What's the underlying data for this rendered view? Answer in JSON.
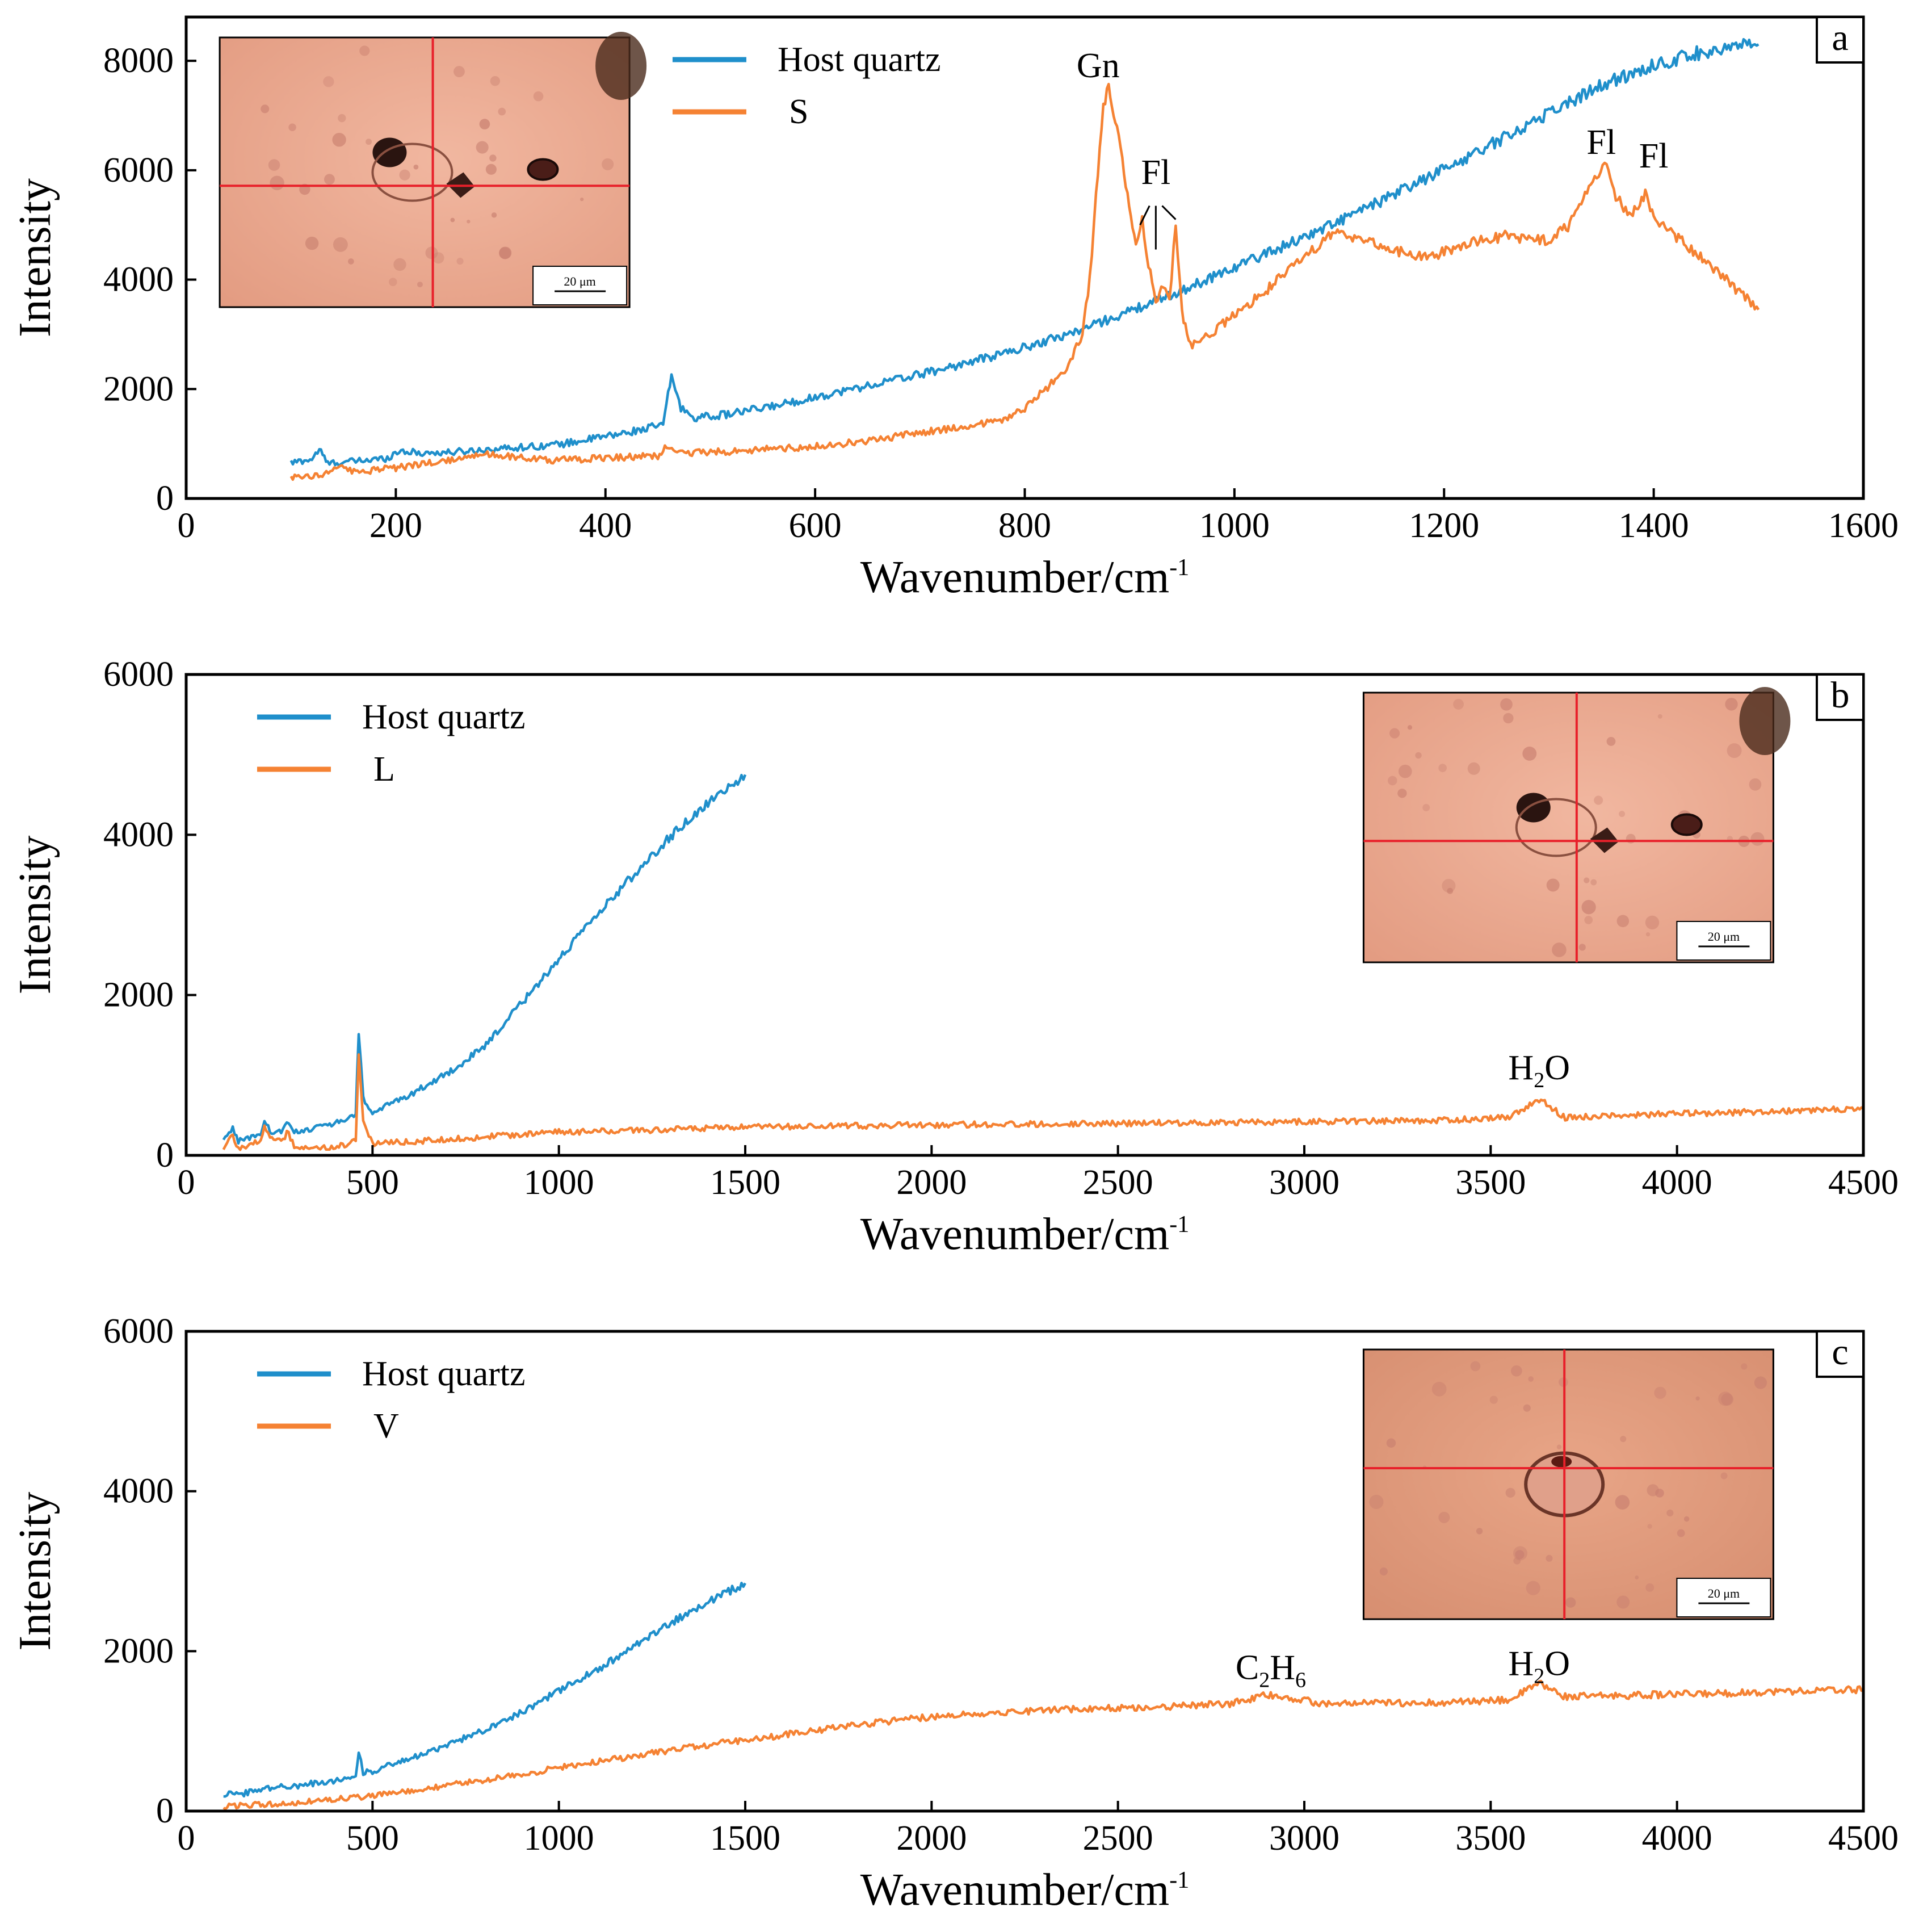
{
  "colors": {
    "host_quartz": "#1f8fcb",
    "sample": "#f58233",
    "crosshair": "#e8202a",
    "photo_bg": "#ecab93"
  },
  "chart_data": [
    {
      "type": "line",
      "panel": "a",
      "xlabel": "Wavenumber/cm",
      "xlabel_sup": "-1",
      "ylabel": "Intensity",
      "xlim": [
        0,
        1600
      ],
      "ylim": [
        0,
        8800
      ],
      "xticks": [
        0,
        200,
        400,
        600,
        800,
        1000,
        1200,
        1400,
        1600
      ],
      "yticks": [
        0,
        2000,
        4000,
        6000,
        8000
      ],
      "legend": {
        "placement": "top-center"
      },
      "inset": {
        "placement": "top-left",
        "scale_text": "20 μm"
      },
      "annotations": [
        {
          "label": "Gn",
          "x": 870,
          "y": 7700
        },
        {
          "label": "Fl",
          "x": 925,
          "y": 5750
        },
        {
          "label": "Fl",
          "x": 1350,
          "y": 6300
        },
        {
          "label": "Fl",
          "x": 1400,
          "y": 6050
        }
      ],
      "series": [
        {
          "name": "Host quartz",
          "color_key": "host_quartz",
          "points": [
            [
              100,
              650
            ],
            [
              120,
              720
            ],
            [
              127,
              900
            ],
            [
              135,
              640
            ],
            [
              160,
              680
            ],
            [
              190,
              730
            ],
            [
              205,
              880
            ],
            [
              220,
              830
            ],
            [
              250,
              840
            ],
            [
              290,
              900
            ],
            [
              330,
              950
            ],
            [
              360,
              1000
            ],
            [
              390,
              1100
            ],
            [
              420,
              1200
            ],
            [
              455,
              1350
            ],
            [
              463,
              2250
            ],
            [
              472,
              1650
            ],
            [
              485,
              1480
            ],
            [
              510,
              1520
            ],
            [
              550,
              1650
            ],
            [
              600,
              1850
            ],
            [
              650,
              2060
            ],
            [
              700,
              2270
            ],
            [
              750,
              2500
            ],
            [
              800,
              2760
            ],
            [
              850,
              3060
            ],
            [
              900,
              3420
            ],
            [
              950,
              3800
            ],
            [
              1000,
              4230
            ],
            [
              1050,
              4640
            ],
            [
              1100,
              5070
            ],
            [
              1150,
              5530
            ],
            [
              1200,
              6020
            ],
            [
              1250,
              6520
            ],
            [
              1300,
              7050
            ],
            [
              1350,
              7550
            ],
            [
              1400,
              7920
            ],
            [
              1450,
              8180
            ],
            [
              1500,
              8300
            ]
          ]
        },
        {
          "name": "S",
          "color_key": "sample",
          "points": [
            [
              100,
              400
            ],
            [
              130,
              430
            ],
            [
              145,
              600
            ],
            [
              160,
              480
            ],
            [
              200,
              560
            ],
            [
              250,
              700
            ],
            [
              280,
              820
            ],
            [
              300,
              780
            ],
            [
              350,
              700
            ],
            [
              400,
              740
            ],
            [
              450,
              780
            ],
            [
              460,
              980
            ],
            [
              470,
              820
            ],
            [
              520,
              860
            ],
            [
              600,
              950
            ],
            [
              650,
              1050
            ],
            [
              700,
              1200
            ],
            [
              750,
              1340
            ],
            [
              780,
              1450
            ],
            [
              800,
              1650
            ],
            [
              820,
              2000
            ],
            [
              840,
              2400
            ],
            [
              855,
              3000
            ],
            [
              862,
              4000
            ],
            [
              868,
              5500
            ],
            [
              875,
              7200
            ],
            [
              880,
              7500
            ],
            [
              888,
              6800
            ],
            [
              898,
              5500
            ],
            [
              906,
              4700
            ],
            [
              912,
              5100
            ],
            [
              918,
              4300
            ],
            [
              925,
              3600
            ],
            [
              932,
              3900
            ],
            [
              938,
              3600
            ],
            [
              944,
              5000
            ],
            [
              950,
              3400
            ],
            [
              958,
              2800
            ],
            [
              980,
              3050
            ],
            [
              1000,
              3350
            ],
            [
              1030,
              3800
            ],
            [
              1060,
              4300
            ],
            [
              1090,
              4800
            ],
            [
              1100,
              4850
            ],
            [
              1120,
              4750
            ],
            [
              1150,
              4550
            ],
            [
              1180,
              4400
            ],
            [
              1200,
              4500
            ],
            [
              1230,
              4700
            ],
            [
              1260,
              4800
            ],
            [
              1300,
              4700
            ],
            [
              1320,
              5000
            ],
            [
              1340,
              5700
            ],
            [
              1355,
              6100
            ],
            [
              1362,
              5600
            ],
            [
              1375,
              5200
            ],
            [
              1385,
              5300
            ],
            [
              1392,
              5600
            ],
            [
              1400,
              5100
            ],
            [
              1420,
              4800
            ],
            [
              1450,
              4350
            ],
            [
              1480,
              3800
            ],
            [
              1500,
              3450
            ]
          ]
        }
      ]
    },
    {
      "type": "line",
      "panel": "b",
      "xlabel": "Wavenumber/cm",
      "xlabel_sup": "-1",
      "ylabel": "Intensity",
      "xlim": [
        0,
        4500
      ],
      "ylim": [
        0,
        6000
      ],
      "xticks": [
        0,
        500,
        1000,
        1500,
        2000,
        2500,
        3000,
        3500,
        4000,
        4500
      ],
      "yticks": [
        0,
        2000,
        4000,
        6000
      ],
      "legend": {
        "placement": "top-left"
      },
      "inset": {
        "placement": "top-right",
        "scale_text": "20 μm"
      },
      "annotations": [
        {
          "label": "H",
          "sub": "2",
          "tail": "O",
          "x": 3630,
          "y": 950
        }
      ],
      "series": [
        {
          "name": "Host quartz",
          "color_key": "host_quartz",
          "points": [
            [
              100,
              180
            ],
            [
              125,
              350
            ],
            [
              140,
              180
            ],
            [
              200,
              260
            ],
            [
              210,
              420
            ],
            [
              230,
              270
            ],
            [
              260,
              300
            ],
            [
              270,
              420
            ],
            [
              290,
              290
            ],
            [
              350,
              350
            ],
            [
              400,
              400
            ],
            [
              455,
              500
            ],
            [
              463,
              1550
            ],
            [
              475,
              700
            ],
            [
              500,
              530
            ],
            [
              600,
              760
            ],
            [
              700,
              1020
            ],
            [
              800,
              1350
            ],
            [
              900,
              1900
            ],
            [
              1000,
              2450
            ],
            [
              1100,
              2980
            ],
            [
              1200,
              3500
            ],
            [
              1300,
              3980
            ],
            [
              1400,
              4400
            ],
            [
              1500,
              4750
            ]
          ]
        },
        {
          "name": "L",
          "color_key": "sample",
          "points": [
            [
              100,
              80
            ],
            [
              125,
              250
            ],
            [
              140,
              80
            ],
            [
              200,
              200
            ],
            [
              210,
              350
            ],
            [
              230,
              200
            ],
            [
              260,
              180
            ],
            [
              270,
              300
            ],
            [
              290,
              120
            ],
            [
              350,
              100
            ],
            [
              400,
              100
            ],
            [
              455,
              180
            ],
            [
              463,
              1250
            ],
            [
              475,
              400
            ],
            [
              500,
              150
            ],
            [
              600,
              170
            ],
            [
              800,
              230
            ],
            [
              1000,
              290
            ],
            [
              1200,
              310
            ],
            [
              1500,
              350
            ],
            [
              2000,
              380
            ],
            [
              2500,
              400
            ],
            [
              3000,
              420
            ],
            [
              3400,
              440
            ],
            [
              3550,
              480
            ],
            [
              3630,
              700
            ],
            [
              3700,
              470
            ],
            [
              3800,
              490
            ],
            [
              4000,
              520
            ],
            [
              4200,
              540
            ],
            [
              4500,
              580
            ]
          ]
        }
      ]
    },
    {
      "type": "line",
      "panel": "c",
      "xlabel": "Wavenumber/cm",
      "xlabel_sup": "-1",
      "ylabel": "Intensity",
      "xlim": [
        0,
        4500
      ],
      "ylim": [
        0,
        6000
      ],
      "xticks": [
        0,
        500,
        1000,
        1500,
        2000,
        2500,
        3000,
        3500,
        4000,
        4500
      ],
      "yticks": [
        0,
        2000,
        4000,
        6000
      ],
      "legend": {
        "placement": "top-left"
      },
      "inset": {
        "placement": "top-right",
        "scale_text": "20 μm"
      },
      "annotations": [
        {
          "label": "C",
          "sub": "2",
          "tail": "H",
          "sub2": "6",
          "x": 2910,
          "y": 1650
        },
        {
          "label": "H",
          "sub": "2",
          "tail": "O",
          "x": 3630,
          "y": 1700
        }
      ],
      "series": [
        {
          "name": "Host quartz",
          "color_key": "host_quartz",
          "points": [
            [
              100,
              180
            ],
            [
              120,
              270
            ],
            [
              140,
              200
            ],
            [
              200,
              280
            ],
            [
              300,
              320
            ],
            [
              400,
              380
            ],
            [
              455,
              450
            ],
            [
              463,
              750
            ],
            [
              475,
              480
            ],
            [
              500,
              500
            ],
            [
              600,
              650
            ],
            [
              700,
              820
            ],
            [
              800,
              1020
            ],
            [
              900,
              1240
            ],
            [
              1000,
              1500
            ],
            [
              1100,
              1760
            ],
            [
              1200,
              2050
            ],
            [
              1300,
              2350
            ],
            [
              1400,
              2620
            ],
            [
              1500,
              2850
            ]
          ]
        },
        {
          "name": "V",
          "color_key": "sample",
          "points": [
            [
              100,
              60
            ],
            [
              200,
              80
            ],
            [
              300,
              110
            ],
            [
              400,
              150
            ],
            [
              500,
              190
            ],
            [
              600,
              250
            ],
            [
              700,
              320
            ],
            [
              800,
              390
            ],
            [
              900,
              460
            ],
            [
              1000,
              540
            ],
            [
              1200,
              690
            ],
            [
              1400,
              830
            ],
            [
              1600,
              950
            ],
            [
              1800,
              1080
            ],
            [
              2000,
              1180
            ],
            [
              2200,
              1240
            ],
            [
              2400,
              1280
            ],
            [
              2600,
              1300
            ],
            [
              2800,
              1340
            ],
            [
              2900,
              1450
            ],
            [
              2960,
              1420
            ],
            [
              3050,
              1340
            ],
            [
              3200,
              1350
            ],
            [
              3400,
              1360
            ],
            [
              3550,
              1390
            ],
            [
              3630,
              1600
            ],
            [
              3700,
              1430
            ],
            [
              3900,
              1450
            ],
            [
              4100,
              1470
            ],
            [
              4300,
              1500
            ],
            [
              4500,
              1520
            ]
          ]
        }
      ]
    }
  ]
}
